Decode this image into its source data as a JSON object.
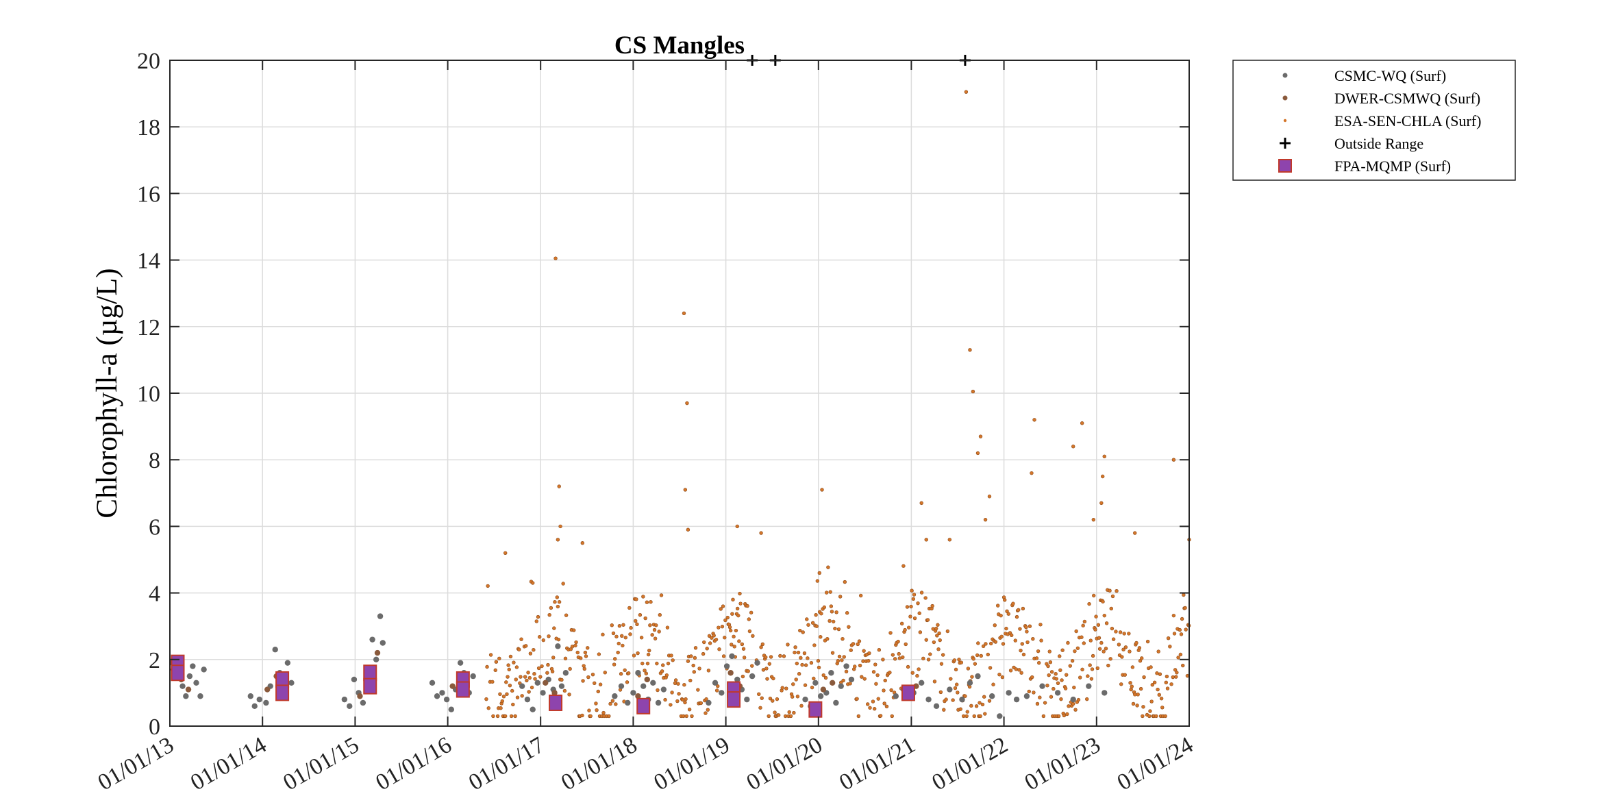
{
  "chart_data": {
    "type": "scatter",
    "title": "CS Mangles",
    "xlabel": "",
    "ylabel": "Chlorophyll-a (µg/L)",
    "xlim": [
      "2013-01-01",
      "2024-01-01"
    ],
    "ylim": [
      0,
      20
    ],
    "yticks": [
      0,
      2,
      4,
      6,
      8,
      10,
      12,
      14,
      16,
      18,
      20
    ],
    "xtick_dates": [
      "2013-01-01",
      "2014-01-01",
      "2015-01-01",
      "2016-01-01",
      "2017-01-01",
      "2018-01-01",
      "2019-01-01",
      "2020-01-01",
      "2021-01-01",
      "2022-01-01",
      "2023-01-01",
      "2024-01-01"
    ],
    "xtick_labels": [
      "01/01/13",
      "01/01/14",
      "01/01/15",
      "01/01/16",
      "01/01/17",
      "01/01/18",
      "01/01/19",
      "01/01/20",
      "01/01/21",
      "01/01/22",
      "01/01/23",
      "01/01/24"
    ],
    "grid": true,
    "legend_position": "outside-top-right",
    "series": [
      {
        "name": "CSMC-WQ (Surf)",
        "marker": "dot",
        "color": "#6b6b6b",
        "points": [
          [
            "2013-01-10",
            1.9
          ],
          [
            "2013-01-25",
            1.6
          ],
          [
            "2013-02-10",
            2.0
          ],
          [
            "2013-02-20",
            1.2
          ],
          [
            "2013-03-05",
            0.9
          ],
          [
            "2013-03-20",
            1.5
          ],
          [
            "2013-04-01",
            1.8
          ],
          [
            "2013-04-15",
            1.3
          ],
          [
            "2013-05-01",
            0.9
          ],
          [
            "2013-05-15",
            1.7
          ],
          [
            "2013-11-15",
            0.9
          ],
          [
            "2013-12-01",
            0.6
          ],
          [
            "2013-12-20",
            0.8
          ],
          [
            "2014-01-15",
            0.7
          ],
          [
            "2014-02-01",
            1.2
          ],
          [
            "2014-02-20",
            2.3
          ],
          [
            "2014-03-10",
            1.6
          ],
          [
            "2014-03-25",
            1.0
          ],
          [
            "2014-04-10",
            1.9
          ],
          [
            "2014-04-25",
            1.3
          ],
          [
            "2014-11-20",
            0.8
          ],
          [
            "2014-12-10",
            0.6
          ],
          [
            "2014-12-28",
            1.4
          ],
          [
            "2015-01-15",
            1.0
          ],
          [
            "2015-02-01",
            0.7
          ],
          [
            "2015-02-20",
            1.2
          ],
          [
            "2015-03-10",
            2.6
          ],
          [
            "2015-03-25",
            2.0
          ],
          [
            "2015-04-10",
            3.3
          ],
          [
            "2015-04-20",
            2.5
          ],
          [
            "2015-11-01",
            1.3
          ],
          [
            "2015-11-20",
            0.9
          ],
          [
            "2015-12-10",
            1.0
          ],
          [
            "2015-12-28",
            0.8
          ],
          [
            "2016-01-15",
            0.5
          ],
          [
            "2016-02-01",
            1.1
          ],
          [
            "2016-02-20",
            1.9
          ],
          [
            "2016-03-05",
            1.6
          ],
          [
            "2016-03-25",
            1.0
          ],
          [
            "2016-04-10",
            1.5
          ],
          [
            "2016-10-20",
            1.2
          ],
          [
            "2016-11-10",
            0.8
          ],
          [
            "2016-12-01",
            0.5
          ],
          [
            "2016-12-20",
            1.3
          ],
          [
            "2017-01-10",
            1.0
          ],
          [
            "2017-02-01",
            1.4
          ],
          [
            "2017-02-20",
            1.1
          ],
          [
            "2017-03-10",
            2.4
          ],
          [
            "2017-03-25",
            1.2
          ],
          [
            "2017-04-10",
            1.6
          ],
          [
            "2017-10-20",
            0.9
          ],
          [
            "2017-11-15",
            1.2
          ],
          [
            "2017-12-10",
            0.7
          ],
          [
            "2018-01-01",
            1.0
          ],
          [
            "2018-01-20",
            1.6
          ],
          [
            "2018-02-10",
            1.2
          ],
          [
            "2018-03-01",
            0.8
          ],
          [
            "2018-03-20",
            1.3
          ],
          [
            "2018-04-10",
            0.7
          ],
          [
            "2018-05-01",
            1.1
          ],
          [
            "2018-10-25",
            0.7
          ],
          [
            "2018-11-20",
            1.3
          ],
          [
            "2018-12-15",
            1.0
          ],
          [
            "2019-01-05",
            1.8
          ],
          [
            "2019-01-25",
            2.1
          ],
          [
            "2019-02-15",
            1.4
          ],
          [
            "2019-03-05",
            1.1
          ],
          [
            "2019-03-25",
            0.8
          ],
          [
            "2019-04-15",
            1.5
          ],
          [
            "2019-05-05",
            1.9
          ],
          [
            "2019-11-10",
            0.8
          ],
          [
            "2019-12-01",
            0.6
          ],
          [
            "2019-12-20",
            1.3
          ],
          [
            "2020-01-10",
            0.9
          ],
          [
            "2020-02-01",
            1.0
          ],
          [
            "2020-02-20",
            1.6
          ],
          [
            "2020-03-10",
            0.7
          ],
          [
            "2020-03-30",
            1.2
          ],
          [
            "2020-04-20",
            1.8
          ],
          [
            "2020-05-10",
            1.4
          ],
          [
            "2020-11-01",
            0.9
          ],
          [
            "2020-12-01",
            1.1
          ],
          [
            "2021-01-10",
            1.0
          ],
          [
            "2021-02-10",
            1.3
          ],
          [
            "2021-03-10",
            0.8
          ],
          [
            "2021-04-10",
            0.6
          ],
          [
            "2021-06-01",
            1.1
          ],
          [
            "2021-07-20",
            0.8
          ],
          [
            "2021-08-20",
            1.3
          ],
          [
            "2021-09-20",
            1.5
          ],
          [
            "2021-11-15",
            0.9
          ],
          [
            "2021-12-15",
            0.3
          ],
          [
            "2022-01-20",
            1.0
          ],
          [
            "2022-02-20",
            0.8
          ],
          [
            "2022-04-01",
            0.9
          ],
          [
            "2022-06-01",
            1.2
          ],
          [
            "2022-08-01",
            1.0
          ],
          [
            "2022-10-01",
            0.8
          ],
          [
            "2022-12-01",
            1.2
          ],
          [
            "2023-02-01",
            1.0
          ]
        ]
      },
      {
        "name": "DWER-CSMWQ (Surf)",
        "marker": "dot",
        "color": "#8a5a3c",
        "points": [
          [
            "2013-01-15",
            1.7
          ],
          [
            "2013-02-15",
            1.4
          ],
          [
            "2013-03-15",
            1.1
          ],
          [
            "2014-01-20",
            1.1
          ],
          [
            "2014-02-25",
            1.5
          ],
          [
            "2014-03-20",
            1.2
          ],
          [
            "2015-01-20",
            0.9
          ],
          [
            "2015-02-25",
            1.6
          ],
          [
            "2015-03-30",
            2.2
          ],
          [
            "2016-01-20",
            1.2
          ],
          [
            "2016-02-25",
            1.4
          ],
          [
            "2017-01-20",
            1.3
          ],
          [
            "2017-02-25",
            1.0
          ],
          [
            "2018-01-20",
            0.9
          ],
          [
            "2018-02-25",
            1.4
          ],
          [
            "2019-01-20",
            1.6
          ],
          [
            "2019-02-25",
            1.2
          ],
          [
            "2020-01-20",
            1.1
          ],
          [
            "2020-02-25",
            1.3
          ],
          [
            "2021-01-20",
            1.2
          ]
        ]
      },
      {
        "name": "ESA-SEN-CHLA (Surf)",
        "marker": "small-dot",
        "color": "#d4762a",
        "points": []
      },
      {
        "name": "Outside Range",
        "marker": "plus",
        "color": "#000000",
        "points": [
          [
            "2019-04-15",
            20
          ],
          [
            "2019-07-15",
            20
          ],
          [
            "2021-08-01",
            20
          ]
        ]
      },
      {
        "name": "FPA-MQMP (Surf)",
        "marker": "square",
        "color": "#8e44ad",
        "points": [
          [
            "2013-02-01",
            1.9
          ],
          [
            "2013-02-01",
            1.6
          ],
          [
            "2014-03-20",
            1.4
          ],
          [
            "2014-03-20",
            1.0
          ],
          [
            "2015-03-01",
            1.6
          ],
          [
            "2015-03-01",
            1.2
          ],
          [
            "2016-03-01",
            1.4
          ],
          [
            "2016-03-01",
            1.1
          ],
          [
            "2017-03-01",
            0.7
          ],
          [
            "2018-02-10",
            0.6
          ],
          [
            "2019-02-01",
            1.1
          ],
          [
            "2019-02-01",
            0.8
          ],
          [
            "2019-12-20",
            0.5
          ],
          [
            "2020-12-20",
            1.0
          ]
        ]
      }
    ],
    "satellite_profile": {
      "note_series": "ESA-SEN-CHLA (Surf)",
      "start": "2016-06-01",
      "end": "2024-01-01",
      "step_days": 3,
      "seed": 7,
      "outliers": [
        [
          "2017-03-01",
          14.05
        ],
        [
          "2017-03-15",
          7.2
        ],
        [
          "2017-03-20",
          6.0
        ],
        [
          "2017-03-10",
          5.6
        ],
        [
          "2017-06-15",
          5.5
        ],
        [
          "2016-08-15",
          5.2
        ],
        [
          "2018-07-20",
          12.4
        ],
        [
          "2018-08-01",
          9.7
        ],
        [
          "2018-07-25",
          7.1
        ],
        [
          "2018-08-05",
          5.9
        ],
        [
          "2019-02-15",
          6.0
        ],
        [
          "2019-05-20",
          5.8
        ],
        [
          "2020-01-15",
          7.1
        ],
        [
          "2020-01-05",
          4.6
        ],
        [
          "2021-02-10",
          6.7
        ],
        [
          "2021-03-01",
          5.6
        ],
        [
          "2021-06-01",
          5.6
        ],
        [
          "2021-08-05",
          19.05
        ],
        [
          "2021-08-20",
          11.3
        ],
        [
          "2021-09-01",
          10.05
        ],
        [
          "2021-10-01",
          8.7
        ],
        [
          "2021-09-20",
          8.2
        ],
        [
          "2021-11-05",
          6.9
        ],
        [
          "2021-10-20",
          6.2
        ],
        [
          "2022-05-01",
          9.2
        ],
        [
          "2022-04-20",
          7.6
        ],
        [
          "2022-10-01",
          8.4
        ],
        [
          "2022-11-05",
          9.1
        ],
        [
          "2022-12-20",
          6.2
        ],
        [
          "2023-01-25",
          7.5
        ],
        [
          "2023-02-01",
          8.1
        ],
        [
          "2023-01-20",
          6.7
        ],
        [
          "2023-06-01",
          5.8
        ],
        [
          "2023-11-01",
          8.0
        ],
        [
          "2024-01-01",
          5.6
        ]
      ]
    }
  },
  "legend": {
    "items": [
      {
        "label": "CSMC-WQ (Surf)"
      },
      {
        "label": "DWER-CSMWQ (Surf)"
      },
      {
        "label": "ESA-SEN-CHLA (Surf)"
      },
      {
        "label": "Outside Range"
      },
      {
        "label": "FPA-MQMP (Surf)"
      }
    ]
  }
}
